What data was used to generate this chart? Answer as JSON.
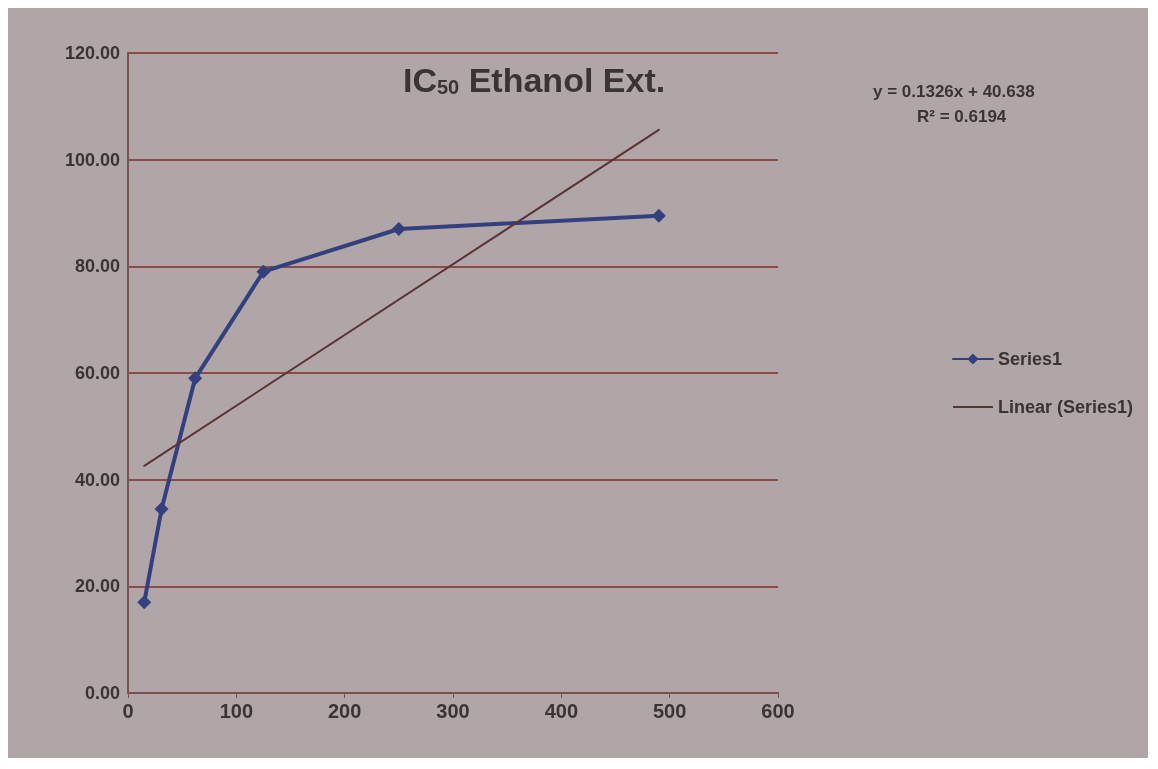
{
  "chart_data": {
    "type": "line",
    "title": "IC$_{50}$ Ethanol Ext.",
    "annotations": [
      "y = 0.1326x + 40.638",
      "R² = 0.6194"
    ],
    "series": [
      {
        "name": "Series1",
        "color": "#34407e",
        "x": [
          15,
          31,
          62,
          125,
          250,
          490
        ],
        "values": [
          17,
          34.5,
          59,
          79,
          87,
          89.5
        ],
        "marker": "diamond",
        "line_style": "solid"
      },
      {
        "name": "Linear (Series1)",
        "type": "line",
        "color": "#5a3434",
        "x": [
          15,
          490
        ],
        "values": [
          42.6,
          105.6
        ],
        "marker": "none",
        "line_style": "solid"
      }
    ],
    "xlim": [
      0,
      600
    ],
    "xticks": [
      0,
      100,
      200,
      300,
      400,
      500,
      600
    ],
    "ylim": [
      0,
      120
    ],
    "yticks": [
      {
        "value": 0,
        "label": "0.00"
      },
      {
        "value": 20,
        "label": "20.00"
      },
      {
        "value": 40,
        "label": "40.00"
      },
      {
        "value": 60,
        "label": "60.00"
      },
      {
        "value": 80,
        "label": "80.00"
      },
      {
        "value": 100,
        "label": "100.00"
      },
      {
        "value": 120,
        "label": "120.00"
      }
    ],
    "grid": "y",
    "legend": "right"
  }
}
